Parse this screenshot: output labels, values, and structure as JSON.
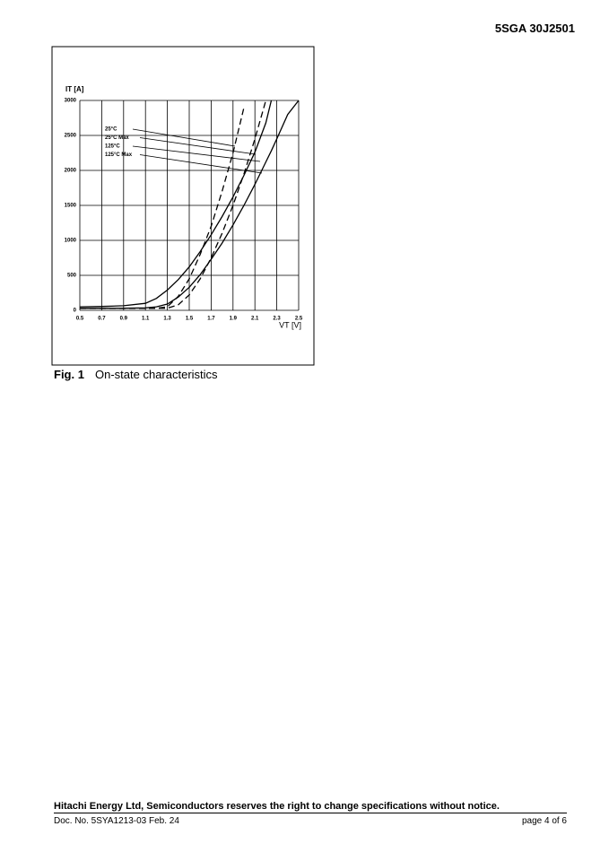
{
  "header": {
    "part_number": "5SGA 30J2501"
  },
  "chart_data": {
    "type": "line",
    "y_label": "IT [A]",
    "x_label": "VT [V]",
    "x": [
      0.5,
      0.7,
      0.9,
      1.1,
      1.2,
      1.3,
      1.4,
      1.5,
      1.6,
      1.7,
      1.8,
      1.9,
      2.0,
      2.1,
      2.2,
      2.25,
      2.3,
      2.4,
      2.5
    ],
    "xlim": [
      0.5,
      2.5
    ],
    "xticks": [
      0.5,
      0.7,
      0.9,
      1.1,
      1.3,
      1.5,
      1.7,
      1.9,
      2.1,
      2.3,
      2.5
    ],
    "ylim": [
      0,
      3000
    ],
    "yticks": [
      0,
      500,
      1000,
      1500,
      2000,
      2500,
      3000
    ],
    "grid": true,
    "series": [
      {
        "name": "25°C",
        "color": "#000000",
        "dashed": true,
        "values": [
          30,
          30,
          30,
          30,
          30,
          50,
          200,
          450,
          800,
          1200,
          1700,
          2250,
          2900,
          null,
          null,
          null,
          null,
          null,
          null
        ]
      },
      {
        "name": "25°C Max",
        "color": "#000000",
        "dashed": true,
        "values": [
          30,
          30,
          30,
          30,
          30,
          30,
          80,
          220,
          450,
          750,
          1100,
          1500,
          1950,
          2450,
          3000,
          null,
          null,
          null,
          null
        ]
      },
      {
        "name": "125°C",
        "color": "#000000",
        "dashed": false,
        "values": [
          50,
          55,
          65,
          100,
          170,
          290,
          440,
          620,
          840,
          1080,
          1340,
          1620,
          1930,
          2260,
          2680,
          3000,
          null,
          null,
          null
        ]
      },
      {
        "name": "125°C Max",
        "color": "#000000",
        "dashed": false,
        "values": [
          30,
          30,
          30,
          35,
          50,
          90,
          190,
          330,
          510,
          730,
          960,
          1220,
          1500,
          1800,
          2120,
          2280,
          2450,
          2800,
          3000
        ]
      }
    ]
  },
  "figure": {
    "number": "Fig. 1",
    "caption": "On-state characteristics"
  },
  "footer": {
    "notice": "Hitachi Energy Ltd, Semiconductors reserves the right to change specifications without notice.",
    "doc_number": "Doc. No. 5SYA1213-03 Feb. 24",
    "page": "page 4 of 6"
  }
}
